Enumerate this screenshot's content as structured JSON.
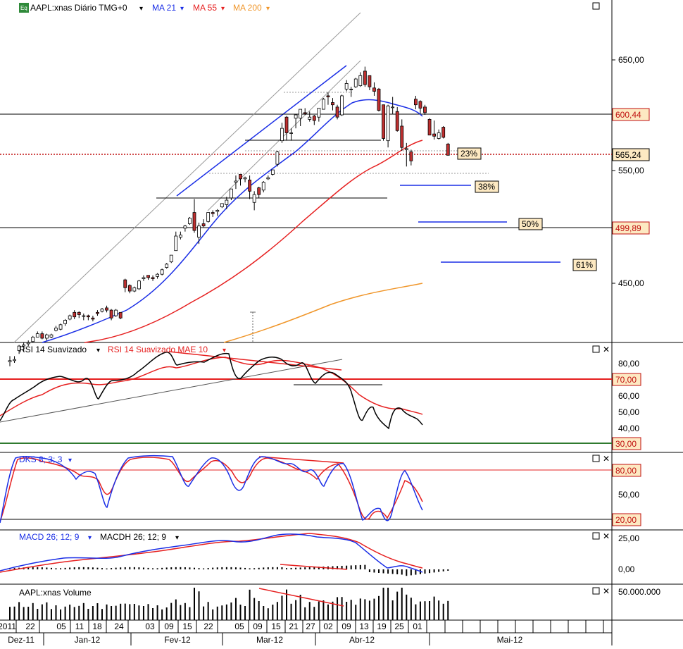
{
  "header": {
    "eq_icon": "Eq",
    "symbol": "AAPL:xnas Diário TMG+0",
    "ma21": "MA 21",
    "ma55": "MA 55",
    "ma200": "MA 200",
    "dropdown_glyph": "▾"
  },
  "colors": {
    "up_candle": "#ffffff",
    "down_candle": "#c03030",
    "ma21": "#1a2ee6",
    "ma55": "#e62020",
    "ma200": "#f0962a",
    "rsi": "#000000",
    "rsi_signal": "#e62020",
    "stoch_k": "#1a2ee6",
    "stoch_d": "#e62020",
    "macd": "#1a2ee6",
    "macd_signal": "#e62020",
    "price_tag_bg": "#fde9c2",
    "price_tag_fg": "#c01010"
  },
  "price_panel": {
    "axis_ticks": [
      "650,00",
      "550,00",
      "450,00"
    ],
    "price_tags": [
      "600,44",
      "565,24",
      "499,89"
    ],
    "fib_labels": [
      "23%",
      "38%",
      "50%",
      "61%"
    ]
  },
  "rsi_panel": {
    "title": "RSI 14 Suavizado",
    "signal_title": "RSI 14 Suavizado MAE 10",
    "axis_ticks": [
      "80,00",
      "60,00",
      "50,00",
      "40,00"
    ],
    "level_tags": [
      "70,00",
      "30,00"
    ]
  },
  "stoch_panel": {
    "title": "DKS 8; 3; 3",
    "axis_ticks": [
      "50,00"
    ],
    "level_tags": [
      "80,00",
      "20,00"
    ]
  },
  "macd_panel": {
    "title": "MACD 26; 12; 9",
    "hist_title": "MACDH 26; 12; 9",
    "axis_ticks": [
      "25,00",
      "0,00"
    ]
  },
  "volume_panel": {
    "title": "AAPL:xnas Volume",
    "axis_ticks": [
      "50.000.000"
    ]
  },
  "date_axis": {
    "days": [
      "2011",
      "22",
      "05",
      "11",
      "18",
      "24",
      "03",
      "09",
      "15",
      "22",
      "05",
      "09",
      "15",
      "21",
      "27",
      "02",
      "09",
      "13",
      "19",
      "25",
      "01"
    ],
    "months": [
      "Dez-11",
      "Jan-12",
      "Fev-12",
      "Mar-12",
      "Abr-12",
      "Mai-12"
    ]
  },
  "panel_controls": {
    "maximize": "□",
    "close": "✕"
  },
  "chart_data": {
    "type": "candlestick",
    "title": "AAPL:xnas Diário TMG+0",
    "x_range": [
      "2011-12-16",
      "2012-05-31"
    ],
    "price_range": [
      405,
      690
    ],
    "reference_levels": [
      600.44,
      565.24,
      499.89
    ],
    "fib_targets": [
      {
        "label": "23%",
        "value": 572.5
      },
      {
        "label": "38%",
        "value": 538
      },
      {
        "label": "50%",
        "value": 504
      },
      {
        "label": "61%",
        "value": 470
      }
    ],
    "candles": [
      {
        "d": "2011-12-16",
        "o": 381,
        "h": 386,
        "l": 377,
        "c": 382
      },
      {
        "d": "2011-12-19",
        "o": 382,
        "h": 386,
        "l": 380,
        "c": 383
      },
      {
        "d": "2011-12-20",
        "o": 391,
        "h": 396,
        "l": 388,
        "c": 395
      },
      {
        "d": "2011-12-21",
        "o": 395,
        "h": 398,
        "l": 390,
        "c": 396
      },
      {
        "d": "2011-12-22",
        "o": 397,
        "h": 400,
        "l": 395,
        "c": 398
      },
      {
        "d": "2011-12-23",
        "o": 399,
        "h": 404,
        "l": 398,
        "c": 403
      },
      {
        "d": "2011-12-27",
        "o": 403,
        "h": 408,
        "l": 403,
        "c": 406
      },
      {
        "d": "2011-12-28",
        "o": 406,
        "h": 408,
        "l": 401,
        "c": 402
      },
      {
        "d": "2011-12-29",
        "o": 402,
        "h": 406,
        "l": 400,
        "c": 405
      },
      {
        "d": "2011-12-30",
        "o": 403,
        "h": 406,
        "l": 402,
        "c": 405
      },
      {
        "d": "2012-01-03",
        "o": 409,
        "h": 413,
        "l": 408,
        "c": 411
      },
      {
        "d": "2012-01-04",
        "o": 410,
        "h": 415,
        "l": 409,
        "c": 414
      },
      {
        "d": "2012-01-05",
        "o": 415,
        "h": 419,
        "l": 413,
        "c": 418
      },
      {
        "d": "2012-01-06",
        "o": 419,
        "h": 423,
        "l": 418,
        "c": 422
      },
      {
        "d": "2012-01-09",
        "o": 425,
        "h": 427,
        "l": 419,
        "c": 421
      },
      {
        "d": "2012-01-10",
        "o": 425,
        "h": 426,
        "l": 420,
        "c": 423
      },
      {
        "d": "2012-01-11",
        "o": 422,
        "h": 424,
        "l": 418,
        "c": 422
      },
      {
        "d": "2012-01-12",
        "o": 422,
        "h": 423,
        "l": 418,
        "c": 421
      },
      {
        "d": "2012-01-13",
        "o": 420,
        "h": 422,
        "l": 417,
        "c": 419
      },
      {
        "d": "2012-01-17",
        "o": 425,
        "h": 427,
        "l": 422,
        "c": 424
      },
      {
        "d": "2012-01-18",
        "o": 426,
        "h": 429,
        "l": 425,
        "c": 428
      },
      {
        "d": "2012-01-19",
        "o": 429,
        "h": 431,
        "l": 425,
        "c": 427
      },
      {
        "d": "2012-01-20",
        "o": 427,
        "h": 428,
        "l": 418,
        "c": 420
      },
      {
        "d": "2012-01-23",
        "o": 422,
        "h": 428,
        "l": 421,
        "c": 427
      },
      {
        "d": "2012-01-24",
        "o": 425,
        "h": 425,
        "l": 419,
        "c": 420
      },
      {
        "d": "2012-01-25",
        "o": 454,
        "h": 455,
        "l": 443,
        "c": 447
      },
      {
        "d": "2012-01-26",
        "o": 449,
        "h": 450,
        "l": 442,
        "c": 444
      },
      {
        "d": "2012-01-27",
        "o": 444,
        "h": 448,
        "l": 443,
        "c": 447
      },
      {
        "d": "2012-01-30",
        "o": 446,
        "h": 454,
        "l": 445,
        "c": 453
      },
      {
        "d": "2012-01-31",
        "o": 455,
        "h": 458,
        "l": 453,
        "c": 456
      },
      {
        "d": "2012-02-01",
        "o": 458,
        "h": 458,
        "l": 454,
        "c": 456
      },
      {
        "d": "2012-02-02",
        "o": 456,
        "h": 458,
        "l": 453,
        "c": 455
      },
      {
        "d": "2012-02-03",
        "o": 457,
        "h": 460,
        "l": 455,
        "c": 459
      },
      {
        "d": "2012-02-06",
        "o": 459,
        "h": 464,
        "l": 458,
        "c": 463
      },
      {
        "d": "2012-02-07",
        "o": 465,
        "h": 469,
        "l": 464,
        "c": 468
      },
      {
        "d": "2012-02-08",
        "o": 470,
        "h": 476,
        "l": 469,
        "c": 476
      },
      {
        "d": "2012-02-09",
        "o": 480,
        "h": 497,
        "l": 480,
        "c": 493
      },
      {
        "d": "2012-02-10",
        "o": 492,
        "h": 497,
        "l": 490,
        "c": 494
      },
      {
        "d": "2012-02-13",
        "o": 500,
        "h": 503,
        "l": 497,
        "c": 502
      },
      {
        "d": "2012-02-14",
        "o": 504,
        "h": 510,
        "l": 503,
        "c": 509
      },
      {
        "d": "2012-02-15",
        "o": 514,
        "h": 526,
        "l": 496,
        "c": 498
      },
      {
        "d": "2012-02-16",
        "o": 492,
        "h": 505,
        "l": 486,
        "c": 502
      },
      {
        "d": "2012-02-17",
        "o": 504,
        "h": 508,
        "l": 501,
        "c": 502
      },
      {
        "d": "2012-02-21",
        "o": 506,
        "h": 514,
        "l": 505,
        "c": 514
      },
      {
        "d": "2012-02-22",
        "o": 514,
        "h": 516,
        "l": 510,
        "c": 513
      },
      {
        "d": "2012-02-23",
        "o": 515,
        "h": 517,
        "l": 511,
        "c": 516
      },
      {
        "d": "2012-02-24",
        "o": 519,
        "h": 522,
        "l": 518,
        "c": 522
      },
      {
        "d": "2012-02-27",
        "o": 521,
        "h": 528,
        "l": 517,
        "c": 525
      },
      {
        "d": "2012-02-28",
        "o": 527,
        "h": 535,
        "l": 525,
        "c": 535
      },
      {
        "d": "2012-02-29",
        "o": 541,
        "h": 547,
        "l": 535,
        "c": 542
      },
      {
        "d": "2012-03-01",
        "o": 548,
        "h": 548,
        "l": 538,
        "c": 544
      },
      {
        "d": "2012-03-02",
        "o": 544,
        "h": 546,
        "l": 541,
        "c": 545
      },
      {
        "d": "2012-03-05",
        "o": 543,
        "h": 547,
        "l": 526,
        "c": 533
      },
      {
        "d": "2012-03-06",
        "o": 523,
        "h": 533,
        "l": 516,
        "c": 530
      },
      {
        "d": "2012-03-07",
        "o": 536,
        "h": 537,
        "l": 527,
        "c": 530
      },
      {
        "d": "2012-03-08",
        "o": 534,
        "h": 542,
        "l": 532,
        "c": 541
      },
      {
        "d": "2012-03-09",
        "o": 544,
        "h": 547,
        "l": 543,
        "c": 545
      },
      {
        "d": "2012-03-12",
        "o": 548,
        "h": 552,
        "l": 547,
        "c": 552
      },
      {
        "d": "2012-03-13",
        "o": 557,
        "h": 569,
        "l": 555,
        "c": 568
      },
      {
        "d": "2012-03-14",
        "o": 578,
        "h": 594,
        "l": 576,
        "c": 589
      },
      {
        "d": "2012-03-15",
        "o": 599,
        "h": 600,
        "l": 578,
        "c": 585
      },
      {
        "d": "2012-03-16",
        "o": 585,
        "h": 589,
        "l": 578,
        "c": 585
      },
      {
        "d": "2012-03-19",
        "o": 598,
        "h": 601,
        "l": 589,
        "c": 601
      },
      {
        "d": "2012-03-20",
        "o": 598,
        "h": 606,
        "l": 591,
        "c": 606
      },
      {
        "d": "2012-03-21",
        "o": 603,
        "h": 607,
        "l": 601,
        "c": 602
      },
      {
        "d": "2012-03-22",
        "o": 597,
        "h": 604,
        "l": 595,
        "c": 599
      },
      {
        "d": "2012-03-23",
        "o": 600,
        "h": 601,
        "l": 592,
        "c": 596
      },
      {
        "d": "2012-03-26",
        "o": 599,
        "h": 607,
        "l": 595,
        "c": 607
      },
      {
        "d": "2012-03-27",
        "o": 606,
        "h": 616,
        "l": 606,
        "c": 615
      },
      {
        "d": "2012-03-28",
        "o": 618,
        "h": 621,
        "l": 610,
        "c": 617
      },
      {
        "d": "2012-03-29",
        "o": 612,
        "h": 616,
        "l": 605,
        "c": 610
      },
      {
        "d": "2012-03-30",
        "o": 608,
        "h": 610,
        "l": 597,
        "c": 599
      },
      {
        "d": "2012-04-02",
        "o": 601,
        "h": 619,
        "l": 600,
        "c": 618
      },
      {
        "d": "2012-04-03",
        "o": 624,
        "h": 632,
        "l": 622,
        "c": 629
      },
      {
        "d": "2012-04-04",
        "o": 624,
        "h": 626,
        "l": 617,
        "c": 624
      },
      {
        "d": "2012-04-05",
        "o": 626,
        "h": 634,
        "l": 625,
        "c": 633
      },
      {
        "d": "2012-04-09",
        "o": 627,
        "h": 639,
        "l": 626,
        "c": 636
      },
      {
        "d": "2012-04-10",
        "o": 640,
        "h": 644,
        "l": 626,
        "c": 628
      },
      {
        "d": "2012-04-11",
        "o": 636,
        "h": 636,
        "l": 623,
        "c": 626
      },
      {
        "d": "2012-04-12",
        "o": 625,
        "h": 630,
        "l": 618,
        "c": 622
      },
      {
        "d": "2012-04-13",
        "o": 624,
        "h": 625,
        "l": 604,
        "c": 605
      },
      {
        "d": "2012-04-16",
        "o": 610,
        "h": 610,
        "l": 578,
        "c": 580
      },
      {
        "d": "2012-04-17",
        "o": 578,
        "h": 610,
        "l": 572,
        "c": 609
      },
      {
        "d": "2012-04-18",
        "o": 608,
        "h": 617,
        "l": 602,
        "c": 608
      },
      {
        "d": "2012-04-19",
        "o": 604,
        "h": 608,
        "l": 586,
        "c": 587
      },
      {
        "d": "2012-04-20",
        "o": 591,
        "h": 597,
        "l": 569,
        "c": 572
      },
      {
        "d": "2012-04-23",
        "o": 570,
        "h": 576,
        "l": 555,
        "c": 571
      },
      {
        "d": "2012-04-24",
        "o": 568,
        "h": 570,
        "l": 556,
        "c": 560
      },
      {
        "d": "2012-04-25",
        "o": 615,
        "h": 618,
        "l": 606,
        "c": 610
      },
      {
        "d": "2012-04-26",
        "o": 613,
        "h": 614,
        "l": 602,
        "c": 607
      },
      {
        "d": "2012-04-27",
        "o": 608,
        "h": 610,
        "l": 601,
        "c": 603
      },
      {
        "d": "2012-04-30",
        "o": 597,
        "h": 598,
        "l": 583,
        "c": 583
      },
      {
        "d": "2012-05-01",
        "o": 584,
        "h": 596,
        "l": 579,
        "c": 582
      },
      {
        "d": "2012-05-02",
        "o": 580,
        "h": 588,
        "l": 579,
        "c": 585
      },
      {
        "d": "2012-05-03",
        "o": 590,
        "h": 591,
        "l": 580,
        "c": 581
      },
      {
        "d": "2012-05-04",
        "o": 575,
        "h": 576,
        "l": 565,
        "c": 565
      }
    ]
  }
}
